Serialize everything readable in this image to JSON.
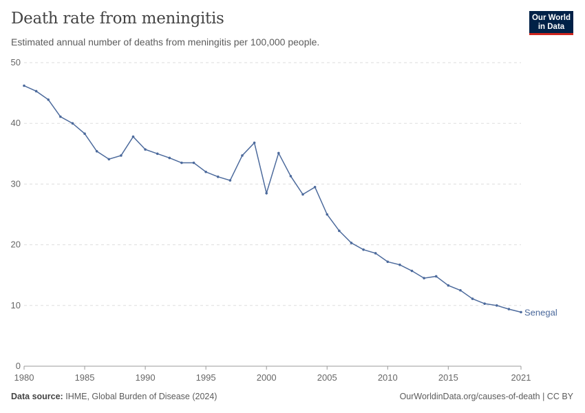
{
  "header": {
    "title": "Death rate from meningitis",
    "subtitle": "Estimated annual number of deaths from meningitis per 100,000 people."
  },
  "logo": {
    "line1": "Our World",
    "line2": "in Data",
    "bg": "#002147",
    "accent": "#ce261e"
  },
  "footer": {
    "source_label": "Data source:",
    "source": "IHME, Global Burden of Disease (2024)",
    "credit": "OurWorldinData.org/causes-of-death | CC BY"
  },
  "chart_data": {
    "type": "line",
    "title": "Death rate from meningitis",
    "ylim": [
      0,
      50
    ],
    "xlim": [
      1980,
      2021
    ],
    "yticks": [
      0,
      10,
      20,
      30,
      40,
      50
    ],
    "xticks": [
      1980,
      1985,
      1990,
      1995,
      2000,
      2005,
      2010,
      2015,
      2021
    ],
    "grid": "horizontal dashed",
    "color": "#4c6a9c",
    "series": [
      {
        "name": "Senegal",
        "x": [
          1980,
          1981,
          1982,
          1983,
          1984,
          1985,
          1986,
          1987,
          1988,
          1989,
          1990,
          1991,
          1992,
          1993,
          1994,
          1995,
          1996,
          1997,
          1998,
          1999,
          2000,
          2001,
          2002,
          2003,
          2004,
          2005,
          2006,
          2007,
          2008,
          2009,
          2010,
          2011,
          2012,
          2013,
          2014,
          2015,
          2016,
          2017,
          2018,
          2019,
          2020,
          2021
        ],
        "values": [
          46.2,
          45.3,
          43.9,
          41.1,
          40.0,
          38.3,
          35.4,
          34.1,
          34.7,
          37.8,
          35.7,
          35.0,
          34.3,
          33.5,
          33.5,
          32.0,
          31.2,
          30.6,
          34.7,
          36.8,
          28.5,
          35.1,
          31.3,
          28.3,
          29.5,
          25.0,
          22.3,
          20.3,
          19.2,
          18.6,
          17.2,
          16.7,
          15.7,
          14.5,
          14.8,
          13.3,
          12.5,
          11.1,
          10.3,
          10.0,
          9.4,
          8.9
        ]
      }
    ]
  }
}
